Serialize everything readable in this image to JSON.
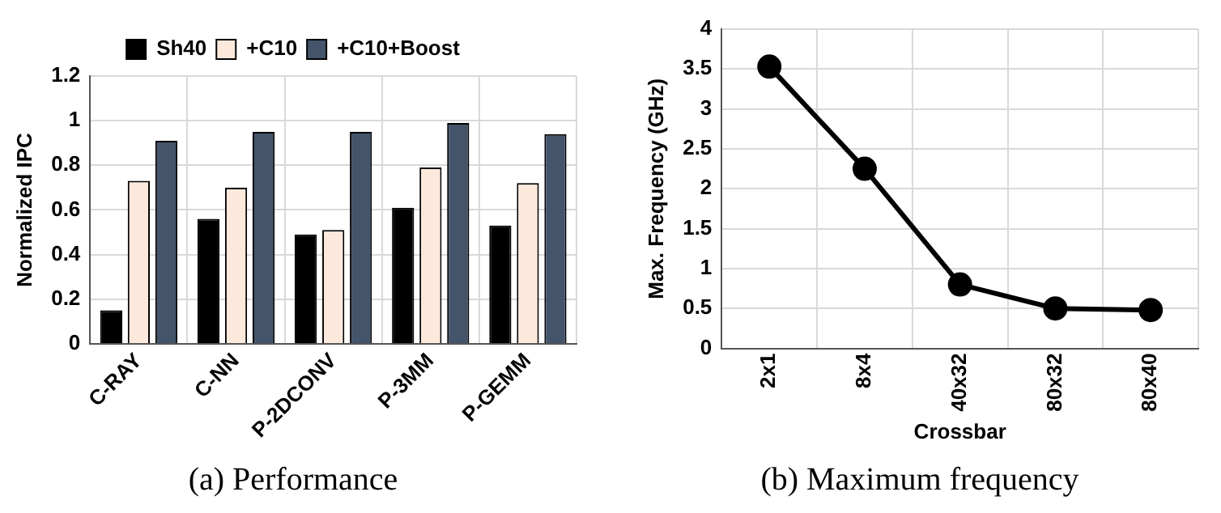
{
  "chart_data": [
    {
      "type": "bar",
      "title": "(a) Performance",
      "ylabel": "Normalized IPC",
      "categories": [
        "C-RAY",
        "C-NN",
        "P-2DCONV",
        "P-3MM",
        "P-GEMM"
      ],
      "series": [
        {
          "name": "Sh40",
          "color": "#000000",
          "values": [
            0.15,
            0.56,
            0.49,
            0.61,
            0.53
          ]
        },
        {
          "name": "+C10",
          "color": "#fde9dc",
          "values": [
            0.73,
            0.7,
            0.51,
            0.79,
            0.72
          ]
        },
        {
          "name": "+C10+Boost",
          "color": "#44546a",
          "values": [
            0.91,
            0.95,
            0.95,
            0.99,
            0.94
          ]
        }
      ],
      "ylim": [
        0,
        1.2
      ],
      "yticks": [
        0,
        0.2,
        0.4,
        0.6,
        0.8,
        1,
        1.2
      ],
      "grid": true,
      "legend": "top"
    },
    {
      "type": "line",
      "title": "(b) Maximum frequency",
      "xlabel": "Crossbar",
      "ylabel": "Max. Frequency (GHz)",
      "categories": [
        "2x1",
        "8x4",
        "40x32",
        "80x32",
        "80x40"
      ],
      "series": [
        {
          "color": "#000000",
          "values": [
            3.53,
            2.25,
            0.8,
            0.5,
            0.48
          ]
        }
      ],
      "ylim": [
        0,
        4
      ],
      "yticks": [
        0,
        0.5,
        1,
        1.5,
        2,
        2.5,
        3,
        3.5,
        4
      ],
      "grid": true,
      "marker": "circle",
      "line_style": "solid"
    }
  ]
}
